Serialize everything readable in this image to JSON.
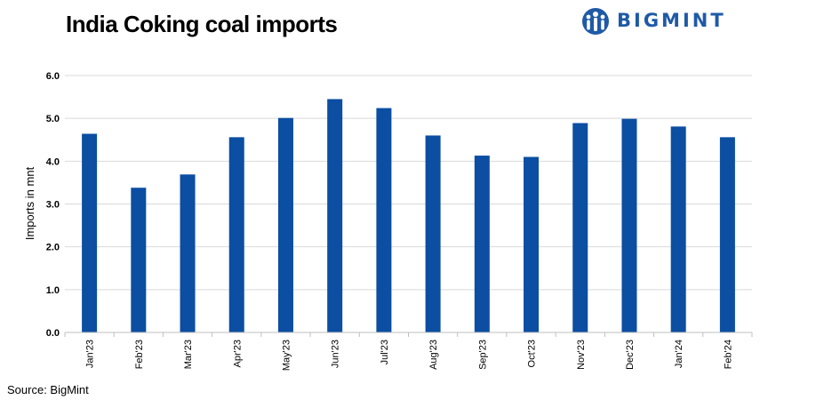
{
  "brand": {
    "name": "BIGMINT",
    "color": "#1f5aa6"
  },
  "source": "Source: BigMint",
  "chart_data": {
    "type": "bar",
    "title": "India Coking coal imports",
    "xlabel": "",
    "ylabel": "Imports in mnt",
    "ylim": [
      0,
      6
    ],
    "yticks": [
      "0.0",
      "1.0",
      "2.0",
      "3.0",
      "4.0",
      "5.0",
      "6.0"
    ],
    "grid": true,
    "bar_color": "#0b4ea2",
    "categories": [
      "Jan'23",
      "Feb'23",
      "Mar'23",
      "Apr'23",
      "May'23",
      "Jun'23",
      "Jul'23",
      "Aug'23",
      "Sep'23",
      "Oct'23",
      "Nov'23",
      "Dec'23",
      "Jan'24",
      "Feb'24"
    ],
    "values": [
      4.64,
      3.38,
      3.69,
      4.56,
      5.01,
      5.45,
      5.24,
      4.6,
      4.13,
      4.1,
      4.89,
      4.99,
      4.81,
      4.56
    ]
  }
}
